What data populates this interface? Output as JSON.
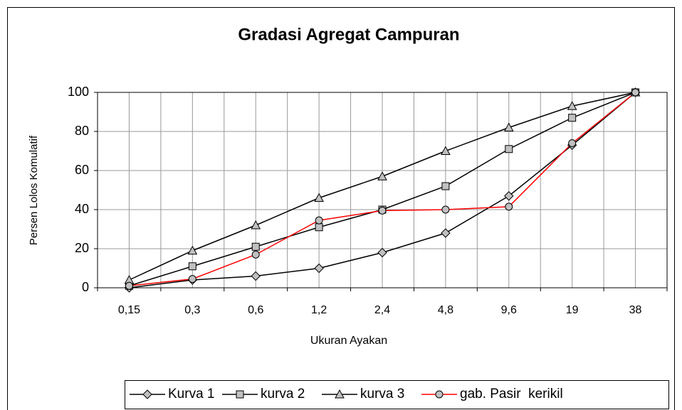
{
  "chart_data": {
    "type": "line",
    "title": "Gradasi Agregat Campuran",
    "x_label": "Ukuran Ayakan",
    "y_label": "Persen Lolos Komulatif",
    "categories": [
      "0,15",
      "0,3",
      "0,6",
      "1,2",
      "2,4",
      "4,8",
      "9,6",
      "19",
      "38"
    ],
    "series": [
      {
        "name": "Kurva 1",
        "color": "#000000",
        "marker": "diamond",
        "values": [
          0,
          4,
          6,
          10,
          18,
          28,
          47,
          73,
          100
        ]
      },
      {
        "name": "kurva 2",
        "color": "#000000",
        "marker": "square",
        "values": [
          1,
          11,
          21,
          31,
          40,
          52,
          71,
          87,
          100
        ]
      },
      {
        "name": "kurva 3",
        "color": "#000000",
        "marker": "triangle",
        "values": [
          4,
          19,
          32,
          46,
          57,
          70,
          82,
          93,
          100
        ]
      },
      {
        "name": "gab. Pasir  kerikil",
        "color": "#ff0000",
        "marker": "circle",
        "values": [
          1,
          4.5,
          17,
          34.5,
          39.5,
          40,
          41.5,
          74,
          100
        ]
      }
    ],
    "marker_fill": "#c0c0c0",
    "ylim": [
      0,
      100
    ],
    "yticks": [
      0,
      20,
      40,
      60,
      80,
      100
    ],
    "grid": true,
    "legend": "bottom"
  }
}
